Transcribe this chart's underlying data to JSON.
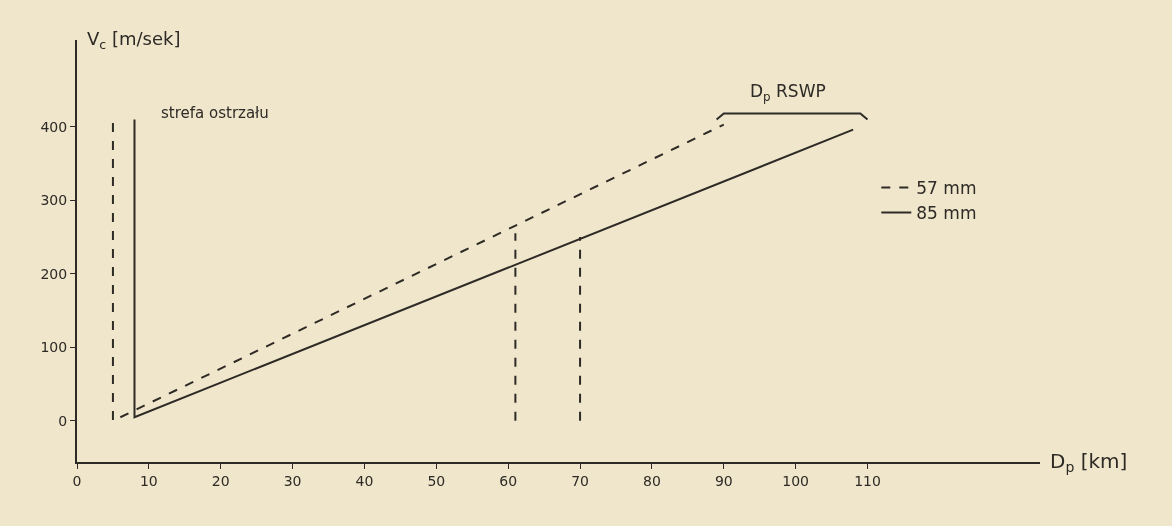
{
  "chart_data": {
    "type": "line",
    "xlabel": "D$_{p}$ [km]",
    "ylabel": "V$_{c}$ [m/sek]",
    "xlim": [
      0,
      134
    ],
    "xticks": [
      0,
      10,
      20,
      30,
      40,
      50,
      60,
      70,
      80,
      90,
      100,
      110
    ],
    "ylim": [
      -56,
      518
    ],
    "yticks": [
      0,
      100,
      200,
      300,
      400
    ],
    "grid": false,
    "legend": "right",
    "marker": "none",
    "series": [
      {
        "name": "57 mm",
        "color": "#2e2a25",
        "line_style": "dashed",
        "x": [
          5,
          5,
          90
        ],
        "values": [
          405,
          0,
          403
        ]
      },
      {
        "name": "85 mm",
        "color": "#2e2a25",
        "line_style": "solid",
        "x": [
          8,
          8,
          108
        ],
        "values": [
          410,
          5,
          396
        ]
      },
      {
        "color": "#2e2a25",
        "line_style": "dashed",
        "x": [
          61,
          61
        ],
        "values": [
          0,
          255
        ]
      },
      {
        "color": "#2e2a25",
        "line_style": "dashed",
        "x": [
          70,
          70
        ],
        "values": [
          0,
          250
        ]
      },
      {
        "color": "#2e2a25",
        "line_style": "solid",
        "x": [
          89,
          90,
          99,
          109,
          110
        ],
        "values": [
          410,
          418,
          418,
          418,
          410
        ]
      }
    ],
    "annotations": [
      "strefa ostrzału",
      {
        "text": "D$_{p}$ RSWP",
        "x": 99,
        "y": 418
      }
    ]
  }
}
